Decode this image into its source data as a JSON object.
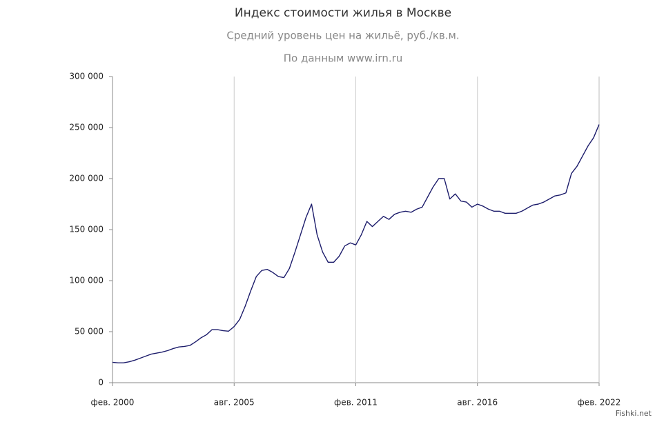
{
  "chart_data": {
    "type": "line",
    "title": "Индекс стоимости жилья в Москве",
    "subtitle": "Средний уровень цен на жильё, руб./кв.м.",
    "source": "По данным www.irn.ru",
    "watermark": "Fishki.net",
    "color": "#1c1c6b",
    "categories": [
      "фев. 2000",
      null,
      null,
      null,
      null,
      null,
      null,
      null,
      null,
      null,
      null,
      null,
      null,
      null,
      null,
      null,
      null,
      null,
      null,
      null,
      null,
      null,
      "авг. 2005",
      null,
      null,
      null,
      null,
      null,
      null,
      null,
      null,
      null,
      null,
      null,
      null,
      null,
      null,
      null,
      null,
      null,
      null,
      null,
      null,
      null,
      "фев. 2011",
      null,
      null,
      null,
      null,
      null,
      null,
      null,
      null,
      null,
      null,
      null,
      null,
      null,
      null,
      null,
      null,
      null,
      null,
      null,
      null,
      null,
      "авг. 2016",
      null,
      null,
      null,
      null,
      null,
      null,
      null,
      null,
      null,
      null,
      null,
      null,
      null,
      null,
      null,
      null,
      null,
      null,
      null,
      null,
      null,
      "фев. 2022"
    ],
    "values": [
      20000,
      19500,
      19500,
      20500,
      22000,
      24000,
      26000,
      28000,
      29000,
      30000,
      31500,
      33500,
      35000,
      35500,
      36500,
      40000,
      44000,
      47000,
      52000,
      52000,
      51000,
      50500,
      55000,
      62000,
      75000,
      90000,
      104000,
      110000,
      111000,
      108000,
      104000,
      103000,
      112000,
      128000,
      145000,
      162000,
      175000,
      145000,
      128000,
      118000,
      118000,
      124000,
      134000,
      137000,
      135000,
      145000,
      158000,
      153000,
      158000,
      163000,
      160000,
      165000,
      167000,
      168000,
      167000,
      170000,
      172000,
      182000,
      192000,
      200000,
      200000,
      180000,
      185000,
      178000,
      177000,
      172000,
      175000,
      173000,
      170000,
      168000,
      168000,
      166000,
      166000,
      166000,
      168000,
      171000,
      174000,
      175000,
      177000,
      180000,
      183000,
      184000,
      186000,
      205000,
      212000,
      222000,
      232000,
      240000,
      253000
    ],
    "ylim": [
      0,
      300000
    ],
    "yticks": [
      0,
      {
        "value": 50000,
        "label": "50 000"
      },
      {
        "value": 100000,
        "label": "100 000"
      },
      {
        "value": 150000,
        "label": "150 000"
      },
      {
        "value": 200000,
        "label": "200 000"
      },
      {
        "value": 250000,
        "label": "250 000"
      },
      {
        "value": 300000,
        "label": "300 000"
      }
    ],
    "grid": true
  }
}
